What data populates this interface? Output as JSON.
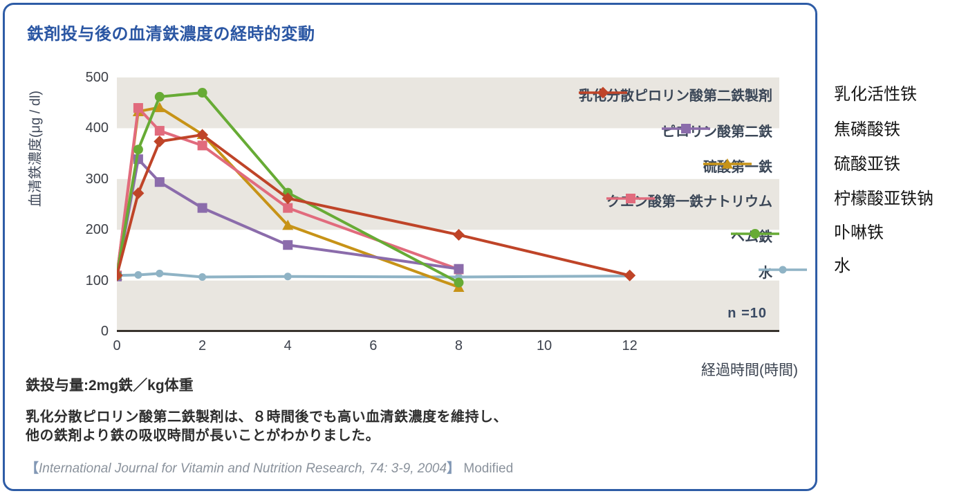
{
  "card": {
    "title": "鉄剤投与後の血清鉄濃度の経時的変動"
  },
  "colors": {
    "card_border": "#2e5ca6",
    "title": "#2a56a3",
    "band": "#e9e6e0",
    "axis_line": "#38332d",
    "legend_text": "#3b4757",
    "body_text": "#2d2d2d",
    "citation_text": "#8a929c"
  },
  "chart_data": {
    "type": "line",
    "title": "鉄剤投与後の血清鉄濃度の経時的変動",
    "ylabel": "血清鉄濃度(μg / dl)",
    "xlabel": "経過時間(時間)",
    "ylim": [
      0,
      500
    ],
    "xlim": [
      0,
      15.5
    ],
    "yticks": [
      0,
      100,
      200,
      300,
      400,
      500
    ],
    "xticks": [
      0,
      2,
      4,
      6,
      8,
      10,
      12
    ],
    "bands": [
      [
        0,
        100
      ],
      [
        200,
        300
      ],
      [
        400,
        500
      ]
    ],
    "band_color": "#e9e6e0",
    "grid": false,
    "legend_position": "inside-right",
    "note": "n =10",
    "series": [
      {
        "name": "乳化分散ピロリン酸第二鉄製剤",
        "color": "#bf4428",
        "marker": "diamond",
        "marker_size": 8.5,
        "x": [
          0,
          0.5,
          1,
          2,
          4,
          8,
          12
        ],
        "values": [
          110,
          272,
          374,
          387,
          262,
          190,
          110
        ]
      },
      {
        "name": "ピロリン酸第二鉄",
        "color": "#8b6cab",
        "marker": "square",
        "marker_size": 7,
        "x": [
          0,
          0.5,
          1,
          2,
          4,
          8
        ],
        "values": [
          108,
          339,
          294,
          243,
          170,
          123
        ]
      },
      {
        "name": "硫酸第一鉄",
        "color": "#c79317",
        "marker": "triangle",
        "marker_size": 8,
        "x": [
          0,
          0.5,
          1,
          2,
          4,
          8
        ],
        "values": [
          110,
          433,
          441,
          388,
          209,
          87
        ]
      },
      {
        "name": "クエン酸第一鉄ナトリウム",
        "color": "#e16b7d",
        "marker": "square",
        "marker_size": 7,
        "x": [
          0,
          0.5,
          1,
          2,
          4,
          8
        ],
        "values": [
          110,
          440,
          395,
          366,
          243,
          122
        ]
      },
      {
        "name": "ヘム鉄",
        "color": "#67ab35",
        "marker": "circle",
        "marker_size": 7,
        "x": [
          0,
          0.5,
          1,
          2,
          4,
          8
        ],
        "values": [
          110,
          358,
          462,
          470,
          273,
          96
        ]
      },
      {
        "name": "水",
        "color": "#8fb3c5",
        "marker": "circle",
        "marker_size": 5.5,
        "x": [
          0,
          0.5,
          1,
          2,
          4,
          8,
          12
        ],
        "values": [
          110,
          111,
          114,
          107,
          108,
          107,
          109
        ]
      }
    ],
    "draw_order": [
      5,
      2,
      3,
      1,
      4,
      0
    ]
  },
  "side_labels": [
    "乳化活性铁",
    "焦磷酸铁",
    "硫酸亚铁",
    "柠檬酸亚铁钠",
    "卟啉铁",
    "水"
  ],
  "footer": {
    "dose_line": "鉄投与量:2mg鉄／kg体重",
    "body_line1": "乳化分散ピロリン酸第二鉄製剤は、８時間後でも高い血清鉄濃度を維持し、",
    "body_line2": "他の鉄剤より鉄の吸収時間が長いことがわかりました。",
    "citation_open": "【",
    "citation_italic": "International Journal for Vitamin and Nutrition Research, 74: 3-9, 2004",
    "citation_close": "】",
    "citation_suffix": " Modified"
  }
}
